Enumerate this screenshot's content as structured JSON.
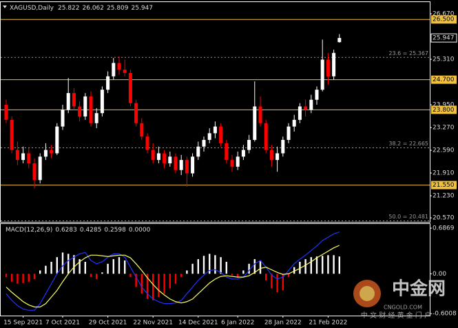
{
  "chart_data": {
    "type": "candlestick",
    "title": "XAGUSD,Daily",
    "categories": [
      null,
      null,
      null,
      "15 Sep 2021",
      null,
      null,
      null,
      null,
      null,
      null,
      "7 Oct 2021",
      null,
      null,
      null,
      null,
      null,
      null,
      null,
      "29 Oct 2021",
      null,
      null,
      null,
      null,
      null,
      null,
      null,
      "22 Nov 2021",
      null,
      null,
      null,
      null,
      null,
      null,
      null,
      "14 Dec 2021",
      null,
      null,
      null,
      null,
      null,
      null,
      "6 Jan 2022",
      null,
      null,
      null,
      null,
      null,
      null,
      null,
      "28 Jan 2022",
      null,
      null,
      null,
      null,
      null,
      null,
      null,
      "21 Feb 2022",
      null,
      null
    ],
    "ohlc": [
      [
        23.95,
        24.1,
        23.4,
        23.5
      ],
      [
        23.5,
        23.6,
        22.5,
        22.6
      ],
      [
        22.6,
        22.85,
        22.15,
        22.3
      ],
      [
        22.3,
        22.7,
        22.2,
        22.5
      ],
      [
        22.5,
        22.65,
        22.05,
        22.2
      ],
      [
        22.2,
        22.35,
        21.45,
        21.7
      ],
      [
        21.7,
        22.5,
        21.6,
        22.4
      ],
      [
        22.4,
        22.8,
        22.3,
        22.6
      ],
      [
        22.6,
        22.75,
        22.35,
        22.5
      ],
      [
        22.5,
        23.4,
        22.45,
        23.3
      ],
      [
        23.3,
        23.95,
        23.2,
        23.8
      ],
      [
        23.8,
        24.75,
        23.7,
        24.3
      ],
      [
        24.3,
        24.45,
        23.8,
        23.9
      ],
      [
        23.9,
        24.05,
        23.45,
        23.6
      ],
      [
        23.6,
        24.3,
        23.5,
        24.2
      ],
      [
        24.2,
        24.35,
        23.3,
        23.4
      ],
      [
        23.4,
        23.85,
        23.25,
        23.7
      ],
      [
        23.7,
        24.5,
        23.6,
        24.4
      ],
      [
        24.4,
        24.95,
        24.3,
        24.8
      ],
      [
        24.8,
        25.35,
        24.7,
        25.2
      ],
      [
        25.2,
        25.4,
        24.85,
        25.0
      ],
      [
        25.0,
        25.3,
        24.8,
        24.9
      ],
      [
        24.9,
        25.0,
        23.9,
        24.0
      ],
      [
        24.0,
        24.1,
        23.3,
        23.4
      ],
      [
        23.4,
        23.55,
        22.9,
        23.0
      ],
      [
        23.0,
        23.1,
        22.5,
        22.6
      ],
      [
        22.6,
        22.8,
        22.2,
        22.3
      ],
      [
        22.3,
        22.7,
        22.2,
        22.5
      ],
      [
        22.5,
        22.6,
        22.05,
        22.2
      ],
      [
        22.2,
        22.55,
        22.1,
        22.4
      ],
      [
        22.4,
        22.5,
        21.9,
        22.0
      ],
      [
        22.0,
        22.45,
        21.85,
        22.3
      ],
      [
        22.3,
        22.4,
        21.5,
        21.9
      ],
      [
        21.9,
        22.5,
        21.8,
        22.4
      ],
      [
        22.4,
        22.85,
        22.3,
        22.7
      ],
      [
        22.7,
        23.0,
        22.55,
        22.9
      ],
      [
        22.9,
        23.25,
        22.8,
        23.1
      ],
      [
        23.1,
        23.45,
        22.95,
        23.3
      ],
      [
        23.3,
        23.4,
        22.7,
        22.8
      ],
      [
        22.8,
        22.9,
        22.2,
        22.3
      ],
      [
        22.3,
        22.45,
        21.95,
        22.1
      ],
      [
        22.1,
        22.55,
        22.0,
        22.4
      ],
      [
        22.4,
        22.75,
        22.3,
        22.6
      ],
      [
        22.6,
        23.05,
        22.5,
        22.9
      ],
      [
        22.9,
        24.65,
        22.85,
        23.9
      ],
      [
        23.9,
        24.2,
        23.3,
        23.4
      ],
      [
        23.4,
        23.5,
        22.5,
        22.6
      ],
      [
        22.6,
        22.75,
        22.1,
        22.3
      ],
      [
        22.3,
        22.7,
        21.95,
        22.5
      ],
      [
        22.5,
        23.0,
        22.4,
        22.9
      ],
      [
        22.9,
        23.4,
        22.8,
        23.3
      ],
      [
        23.3,
        23.65,
        23.15,
        23.5
      ],
      [
        23.5,
        24.0,
        23.4,
        23.9
      ],
      [
        23.9,
        24.1,
        23.6,
        23.8
      ],
      [
        23.8,
        24.25,
        23.7,
        24.1
      ],
      [
        24.1,
        24.5,
        23.95,
        24.4
      ],
      [
        24.4,
        25.9,
        24.35,
        25.3
      ],
      [
        25.3,
        25.5,
        24.55,
        24.8
      ],
      [
        24.8,
        25.6,
        24.7,
        25.5
      ],
      [
        25.822,
        26.062,
        25.809,
        25.947
      ]
    ],
    "up_color": "#ffffff",
    "down_color": "#ff0000",
    "ylim": [
      20.45,
      27.02
    ],
    "yticks": [
      {
        "value": 26.67,
        "label": "26.670"
      },
      {
        "value": 25.31,
        "label": "25.310"
      },
      {
        "value": 23.95,
        "label": "23.950"
      },
      {
        "value": 23.27,
        "label": "23.270"
      },
      {
        "value": 22.59,
        "label": "22.590"
      },
      {
        "value": 21.91,
        "label": "21.910"
      },
      {
        "value": 21.23,
        "label": "21.230"
      },
      {
        "value": 20.57,
        "label": "20.570"
      }
    ],
    "level_color": "#f0c040",
    "levels": [
      {
        "value": 26.5,
        "label": "26.500"
      },
      {
        "value": 24.7,
        "label": "24.700"
      },
      {
        "value": 23.8,
        "label": "23.800"
      },
      {
        "value": 21.55,
        "label": "21.550"
      }
    ],
    "fib_levels": [
      {
        "value": 25.367,
        "label": "23.6 = 25.367"
      },
      {
        "value": 22.665,
        "label": "38.2 = 22.665"
      },
      {
        "value": 20.481,
        "label": "50.0 = 20.481"
      }
    ],
    "macd": {
      "title": "MACD(12,26,9)",
      "fourth_value": "0.0000",
      "histogram": [
        -0.05,
        -0.12,
        -0.15,
        -0.14,
        -0.12,
        -0.08,
        0.05,
        0.12,
        0.18,
        0.25,
        0.32,
        0.3,
        0.28,
        0.22,
        0.18,
        -0.05,
        -0.08,
        0.02,
        0.15,
        0.22,
        0.25,
        0.2,
        -0.05,
        -0.2,
        -0.3,
        -0.38,
        -0.4,
        -0.35,
        -0.3,
        -0.22,
        -0.15,
        -0.05,
        0.05,
        0.15,
        0.22,
        0.27,
        0.3,
        0.28,
        0.25,
        0.18,
        -0.02,
        -0.06,
        0.05,
        0.15,
        0.22,
        0.2,
        -0.1,
        -0.22,
        -0.28,
        -0.25,
        -0.05,
        0.1,
        0.18,
        0.22,
        0.25,
        0.26,
        0.27,
        0.28,
        0.28,
        0.2598
      ],
      "main": [
        -0.3,
        -0.4,
        -0.48,
        -0.53,
        -0.55,
        -0.55,
        -0.45,
        -0.3,
        -0.15,
        0.0,
        0.12,
        0.2,
        0.25,
        0.3,
        0.32,
        0.2,
        0.15,
        0.18,
        0.25,
        0.3,
        0.3,
        0.25,
        0.1,
        -0.05,
        -0.2,
        -0.3,
        -0.38,
        -0.42,
        -0.45,
        -0.45,
        -0.44,
        -0.4,
        -0.3,
        -0.2,
        -0.1,
        -0.02,
        0.05,
        0.06,
        0.02,
        -0.05,
        -0.08,
        -0.08,
        -0.05,
        0.05,
        0.15,
        0.2,
        0.1,
        -0.02,
        -0.08,
        -0.05,
        0.05,
        0.15,
        0.22,
        0.28,
        0.35,
        0.42,
        0.5,
        0.55,
        0.6,
        0.6283
      ],
      "signal": [
        -0.2,
        -0.28,
        -0.35,
        -0.42,
        -0.47,
        -0.5,
        -0.5,
        -0.45,
        -0.35,
        -0.25,
        -0.12,
        0.0,
        0.1,
        0.18,
        0.24,
        0.28,
        0.28,
        0.27,
        0.26,
        0.27,
        0.28,
        0.28,
        0.24,
        0.15,
        0.05,
        -0.06,
        -0.16,
        -0.25,
        -0.32,
        -0.38,
        -0.42,
        -0.44,
        -0.42,
        -0.38,
        -0.3,
        -0.22,
        -0.14,
        -0.08,
        -0.04,
        -0.03,
        -0.04,
        -0.05,
        -0.05,
        -0.03,
        0.02,
        0.08,
        0.1,
        0.06,
        0.02,
        -0.01,
        0.0,
        0.04,
        0.08,
        0.13,
        0.18,
        0.24,
        0.29,
        0.34,
        0.39,
        0.4285
      ],
      "hist_up_color": "#ffffff",
      "hist_down_color": "#ff0000",
      "main_color": "#2233ff",
      "signal_color": "#ffff66",
      "ylim": [
        -0.63,
        0.75
      ],
      "yticks": [
        0.6869,
        {
          "value": 0,
          "label": "0.00"
        },
        -0.6008
      ]
    },
    "watermark": {
      "name": "中金网",
      "url": "CNGOLD.COM",
      "tagline": "中 文 财 经 黄 金 门 户"
    }
  }
}
